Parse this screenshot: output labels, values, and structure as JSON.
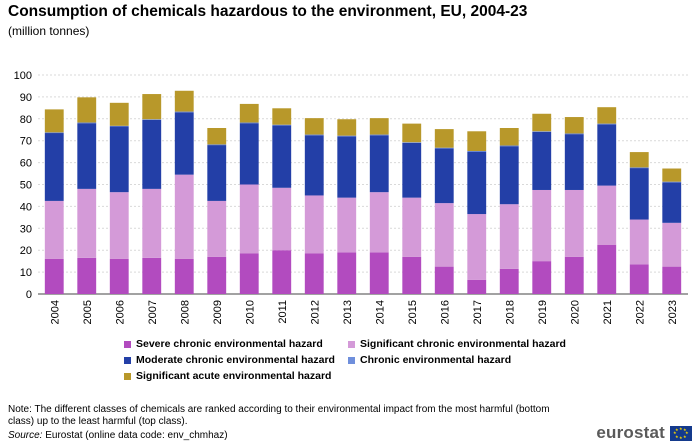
{
  "title": "Consumption of  chemicals hazardous to the environment, EU, 2004-23",
  "subtitle": "(million tonnes)",
  "chart_data": {
    "type": "bar",
    "stacked": true,
    "title": "Consumption of  chemicals hazardous to the environment, EU, 2004-23",
    "ylabel": "(million tonnes)",
    "ylim": [
      0,
      100
    ],
    "yticks": [
      0,
      10,
      20,
      30,
      40,
      50,
      60,
      70,
      80,
      90,
      100
    ],
    "grid": true,
    "legend_position": "bottom",
    "categories": [
      "2004",
      "2005",
      "2006",
      "2007",
      "2008",
      "2009",
      "2010",
      "2011",
      "2012",
      "2013",
      "2014",
      "2015",
      "2016",
      "2017",
      "2018",
      "2019",
      "2020",
      "2021",
      "2022",
      "2023"
    ],
    "series": [
      {
        "name": "Severe chronic environmental hazard",
        "color": "#b24bbf",
        "values": [
          16.0,
          16.5,
          16.0,
          16.5,
          16.0,
          17.0,
          18.5,
          20.0,
          18.5,
          19.0,
          19.0,
          17.0,
          12.5,
          6.5,
          11.5,
          15.0,
          17.0,
          22.5,
          13.5,
          12.5
        ]
      },
      {
        "name": "Significant chronic environmental hazard",
        "color": "#d49ad8",
        "values": [
          26.5,
          31.5,
          30.5,
          31.5,
          38.5,
          25.5,
          31.5,
          28.5,
          26.5,
          25.0,
          27.5,
          27.0,
          29.0,
          30.0,
          29.5,
          32.5,
          30.5,
          27.0,
          20.5,
          20.0
        ]
      },
      {
        "name": "Moderate chronic environmental hazard",
        "color": "#233fa7",
        "values": [
          31.0,
          30.0,
          30.0,
          31.5,
          28.5,
          25.5,
          28.0,
          28.5,
          27.5,
          28.0,
          26.0,
          25.0,
          25.0,
          28.5,
          26.5,
          26.5,
          25.5,
          28.0,
          23.5,
          18.5
        ]
      },
      {
        "name": "Chronic environmental hazard",
        "color": "#6f8fdc",
        "values": [
          0.3,
          0.3,
          0.3,
          0.3,
          0.3,
          0.3,
          0.3,
          0.3,
          0.3,
          0.3,
          0.3,
          0.3,
          0.3,
          0.3,
          0.3,
          0.3,
          0.3,
          0.3,
          0.3,
          0.3
        ]
      },
      {
        "name": "Significant acute environmental hazard",
        "color": "#b8982a",
        "values": [
          10.5,
          11.5,
          10.5,
          11.5,
          9.5,
          7.5,
          8.5,
          7.5,
          7.5,
          7.5,
          7.5,
          8.5,
          8.5,
          9.0,
          8.0,
          8.0,
          7.5,
          7.5,
          7.0,
          6.0
        ]
      }
    ]
  },
  "note": "Note: The different classes of chemicals are ranked according to their environmental  impact from the most harmful (bottom class) up to the least harmful (top class).",
  "source_label": "Source:",
  "source_text": " Eurostat (online data code: env_chmhaz)",
  "logo_text": "eurostat"
}
